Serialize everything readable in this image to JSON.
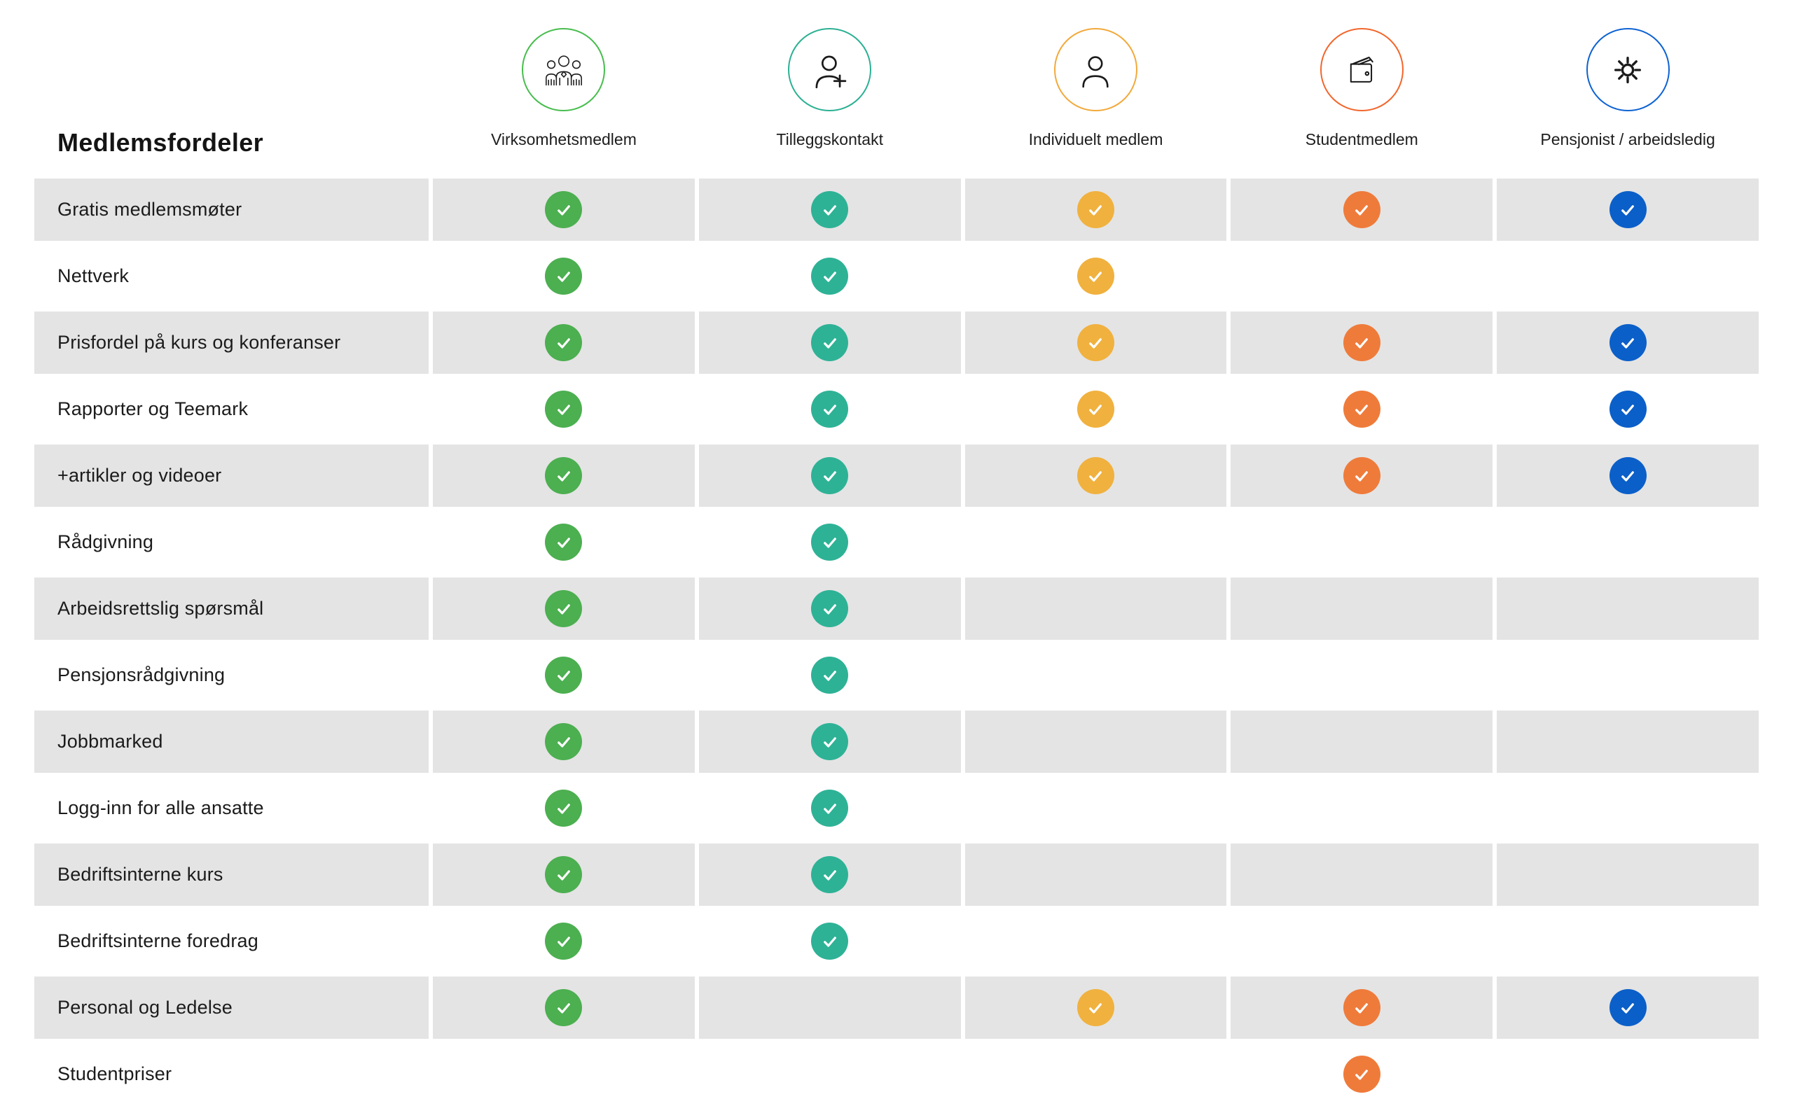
{
  "chart_data": {
    "type": "table",
    "title": "Medlemsfordeler",
    "legend_position": "top",
    "row_shading": "alternate",
    "columns": [
      {
        "label": "Virksomhetsmedlem",
        "icon": "people-group-icon",
        "circle_color": "#47BD4D",
        "check_color": "#4CAF50"
      },
      {
        "label": "Tilleggskontakt",
        "icon": "person-plus-icon",
        "circle_color": "#2BB093",
        "check_color": "#2EB296"
      },
      {
        "label": "Individuelt medlem",
        "icon": "person-icon",
        "circle_color": "#F2A93B",
        "check_color": "#F0B13E"
      },
      {
        "label": "Studentmedlem",
        "icon": "wallet-icon",
        "circle_color": "#F2662C",
        "check_color": "#EF7B3B"
      },
      {
        "label": "Pensjonist / arbeidsledig",
        "icon": "sun-icon",
        "circle_color": "#0E62D3",
        "check_color": "#0B5FC9"
      }
    ],
    "rows": [
      {
        "label": "Gratis medlemsmøter",
        "checks": [
          true,
          true,
          true,
          true,
          true
        ]
      },
      {
        "label": "Nettverk",
        "checks": [
          true,
          true,
          true,
          false,
          false
        ]
      },
      {
        "label": "Prisfordel på kurs og konferanser",
        "checks": [
          true,
          true,
          true,
          true,
          true
        ]
      },
      {
        "label": "Rapporter og Teemark",
        "checks": [
          true,
          true,
          true,
          true,
          true
        ]
      },
      {
        "label": "+artikler og videoer",
        "checks": [
          true,
          true,
          true,
          true,
          true
        ]
      },
      {
        "label": "Rådgivning",
        "checks": [
          true,
          true,
          false,
          false,
          false
        ]
      },
      {
        "label": "Arbeidsrettslig spørsmål",
        "checks": [
          true,
          true,
          false,
          false,
          false
        ]
      },
      {
        "label": "Pensjonsrådgivning",
        "checks": [
          true,
          true,
          false,
          false,
          false
        ]
      },
      {
        "label": "Jobbmarked",
        "checks": [
          true,
          true,
          false,
          false,
          false
        ]
      },
      {
        "label": "Logg-inn for alle ansatte",
        "checks": [
          true,
          true,
          false,
          false,
          false
        ]
      },
      {
        "label": "Bedriftsinterne kurs",
        "checks": [
          true,
          true,
          false,
          false,
          false
        ]
      },
      {
        "label": "Bedriftsinterne foredrag",
        "checks": [
          true,
          true,
          false,
          false,
          false
        ]
      },
      {
        "label": "Personal og Ledelse",
        "checks": [
          true,
          false,
          true,
          true,
          true
        ]
      },
      {
        "label": "Studentpriser",
        "checks": [
          false,
          false,
          false,
          true,
          false
        ]
      }
    ]
  },
  "colors": {
    "shaded_row_bg": "#E4E4E4",
    "check_glyph": "#FFFFFF",
    "icon_stroke": "#1A1A1A",
    "text": "#1B1B1B"
  }
}
